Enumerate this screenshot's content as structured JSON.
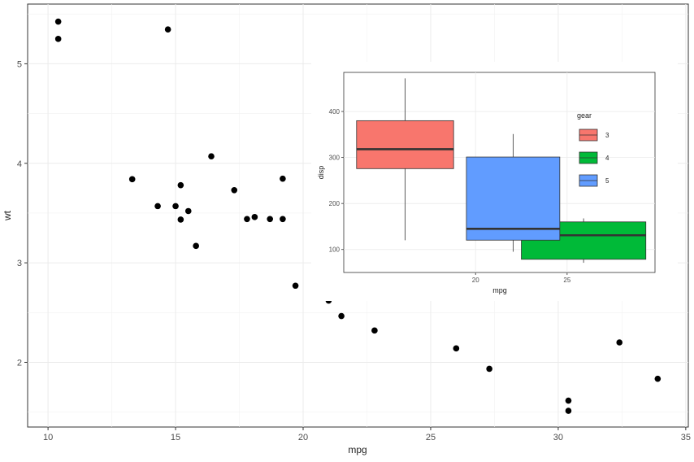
{
  "chart_data": [
    {
      "type": "scatter",
      "xlabel": "mpg",
      "ylabel": "wt",
      "xlim": [
        9.2,
        35.1
      ],
      "ylim": [
        1.35,
        5.6
      ],
      "x_ticks": [
        10,
        15,
        20,
        25,
        30,
        35
      ],
      "y_ticks": [
        2,
        3,
        4,
        5
      ],
      "grid": true,
      "point_color": "#000000",
      "points": [
        {
          "x": 10.4,
          "y": 5.424
        },
        {
          "x": 10.4,
          "y": 5.25
        },
        {
          "x": 14.7,
          "y": 5.345
        },
        {
          "x": 13.3,
          "y": 3.84
        },
        {
          "x": 14.3,
          "y": 3.57
        },
        {
          "x": 15.0,
          "y": 3.57
        },
        {
          "x": 15.2,
          "y": 3.78
        },
        {
          "x": 15.2,
          "y": 3.435
        },
        {
          "x": 15.5,
          "y": 3.52
        },
        {
          "x": 15.8,
          "y": 3.17
        },
        {
          "x": 16.4,
          "y": 4.07
        },
        {
          "x": 17.3,
          "y": 3.73
        },
        {
          "x": 17.8,
          "y": 3.44
        },
        {
          "x": 18.1,
          "y": 3.46
        },
        {
          "x": 18.7,
          "y": 3.44
        },
        {
          "x": 19.2,
          "y": 3.845
        },
        {
          "x": 19.2,
          "y": 3.44
        },
        {
          "x": 19.7,
          "y": 2.77
        },
        {
          "x": 21.0,
          "y": 2.62
        },
        {
          "x": 21.5,
          "y": 2.465
        },
        {
          "x": 22.8,
          "y": 2.32
        },
        {
          "x": 26.0,
          "y": 2.14
        },
        {
          "x": 27.3,
          "y": 1.935
        },
        {
          "x": 30.4,
          "y": 1.615
        },
        {
          "x": 30.4,
          "y": 1.513
        },
        {
          "x": 32.4,
          "y": 2.2
        },
        {
          "x": 33.9,
          "y": 1.835
        }
      ]
    },
    {
      "type": "box",
      "xlabel": "mpg",
      "ylabel": "disp",
      "xlim": [
        12.8,
        29.8
      ],
      "ylim": [
        50,
        485
      ],
      "x_ticks": [
        20,
        25
      ],
      "y_ticks": [
        100,
        200,
        300,
        400
      ],
      "legend_title": "gear",
      "legend_position": "top-right",
      "series": [
        {
          "name": "3",
          "color": "#F8766D",
          "x_range": [
            13.5,
            18.8
          ],
          "whisker_low": 120.1,
          "q1": 275.8,
          "median": 318,
          "q3": 380,
          "whisker_high": 472
        },
        {
          "name": "4",
          "color": "#00BA38",
          "x_range": [
            22.5,
            29.3
          ],
          "whisker_low": 71.1,
          "q1": 78.7,
          "median": 130.9,
          "q3": 160,
          "whisker_high": 167.6
        },
        {
          "name": "5",
          "color": "#619CFF",
          "x_range": [
            19.5,
            24.6
          ],
          "whisker_low": 95.1,
          "q1": 120.3,
          "median": 145,
          "q3": 301,
          "whisker_high": 351
        }
      ]
    }
  ]
}
